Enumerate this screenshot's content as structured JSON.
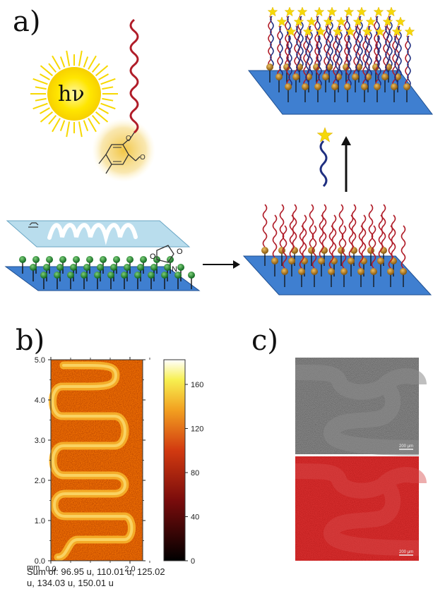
{
  "panels": {
    "a": {
      "label": "a)"
    },
    "b": {
      "label": "b)"
    },
    "c": {
      "label": "c)"
    }
  },
  "panel_a": {
    "light_symbol": "hν",
    "aldehyde_o": "O",
    "ring_o": "O",
    "maleimide_o1": "O",
    "maleimide_o2": "O",
    "maleimide_n": "N"
  },
  "panel_b": {
    "y_ticks": [
      "0.0",
      "1.0",
      "2.0",
      "3.0",
      "4.0",
      "5.0"
    ],
    "x_ticks": [
      "0.0",
      "2.0"
    ],
    "x_unit": "mm",
    "colorbar_ticks": [
      "0",
      "40",
      "80",
      "120",
      "160"
    ],
    "caption": "Sum of: 96.95 u, 110.01 u, 125.02 u, 134.03 u, 150.01 u"
  },
  "panel_c": {
    "scale_top": "200 µm",
    "scale_bottom": "200 µm"
  },
  "colors": {
    "surface": "#3f7fd0",
    "strand_red": "#b01c28",
    "strand_blue": "#1f2f80",
    "star": "#f5d80a",
    "bead_green": "#1e7a2e",
    "bead_orange": "#c8841c"
  }
}
